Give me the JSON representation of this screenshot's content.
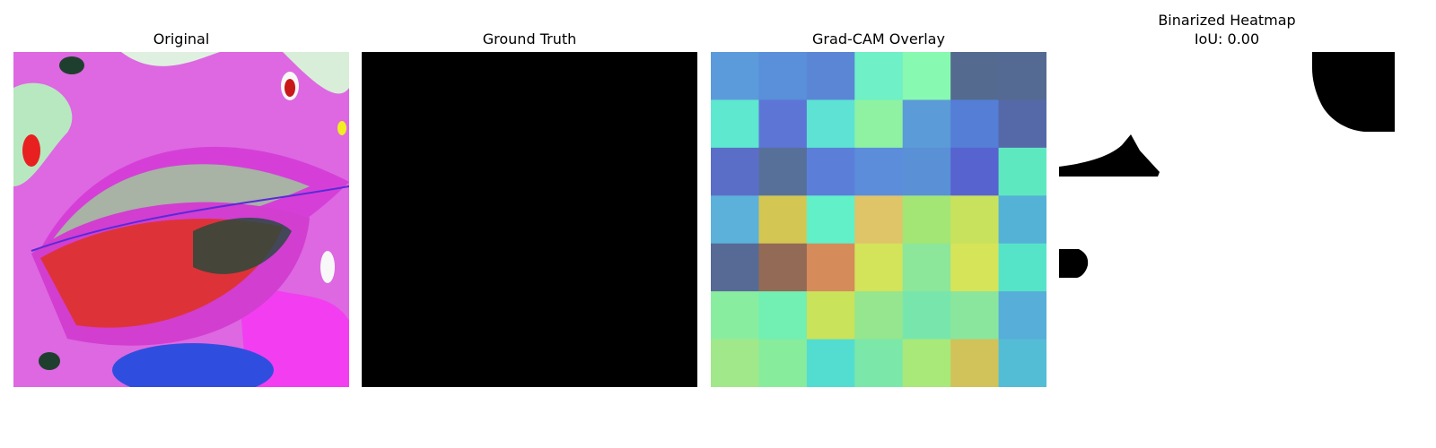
{
  "panels": {
    "original": {
      "title": "Original"
    },
    "ground_truth": {
      "title": "Ground Truth"
    },
    "gradcam": {
      "title": "Grad-CAM Overlay",
      "grid": [
        [
          "#5b9bdb",
          "#5a8fd9",
          "#5b86d6",
          "#6ff0c6",
          "#88f9b0",
          "#546b8f",
          "#556a92"
        ],
        [
          "#5ee8cf",
          "#5d76d6",
          "#5ee2d3",
          "#8ef2a2",
          "#5b9bd7",
          "#557ed7",
          "#5569a9"
        ],
        [
          "#5a6ec8",
          "#57709a",
          "#5b7fd9",
          "#5b8ddb",
          "#5a90d6",
          "#5764d0",
          "#5ee8c0"
        ],
        [
          "#5cb1da",
          "#d4c653",
          "#62f0c8",
          "#dfc468",
          "#a3e676",
          "#c8e25d",
          "#55b2d7"
        ],
        [
          "#576a95",
          "#936a55",
          "#d68b5a",
          "#d3e35a",
          "#8ce79a",
          "#d6e45a",
          "#56e4c8"
        ],
        [
          "#89eda0",
          "#72efb3",
          "#c9e35a",
          "#96e58f",
          "#78e6ac",
          "#89e69c",
          "#57aed8"
        ],
        [
          "#a1e88a",
          "#87ec9b",
          "#52ddd0",
          "#7be8aa",
          "#a8e979",
          "#d1c25a",
          "#54bdd6"
        ]
      ]
    },
    "binarized": {
      "title": "Binarized Heatmap\nIoU: 0.00"
    }
  }
}
